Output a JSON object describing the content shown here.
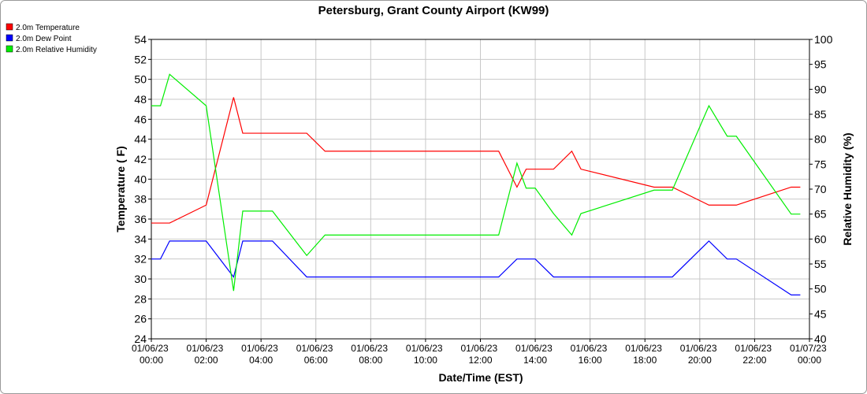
{
  "chart_data": {
    "type": "line",
    "title": "Petersburg, Grant County Airport (KW99)",
    "x_label": "Date/Time (EST)",
    "y_label": "Temperature ( F)",
    "y2_label": "Relative Humidity (%)",
    "grid": true,
    "legend": "top-left",
    "x": [
      "01/06/23 00:00",
      "01/06/23 00:20",
      "01/06/23 00:40",
      "01/06/23 02:00",
      "01/06/23 03:00",
      "01/06/23 03:20",
      "01/06/23 04:25",
      "01/06/23 05:40",
      "01/06/23 06:20",
      "01/06/23 12:40",
      "01/06/23 13:20",
      "01/06/23 13:40",
      "01/06/23 14:00",
      "01/06/23 14:40",
      "01/06/23 15:20",
      "01/06/23 15:40",
      "01/06/23 18:20",
      "01/06/23 19:00",
      "01/06/23 20:20",
      "01/06/23 21:00",
      "01/06/23 21:20",
      "01/06/23 23:20",
      "01/06/23 23:40"
    ],
    "series": [
      {
        "name": "2.0m Temperature",
        "color": "#ff0000",
        "values": [
          35.6,
          35.6,
          35.6,
          37.4,
          48.2,
          44.6,
          44.6,
          44.6,
          42.8,
          42.8,
          39.2,
          41,
          41,
          41,
          42.8,
          41,
          39.2,
          39.2,
          37.4,
          37.4,
          37.4,
          39.2,
          39.2
        ]
      },
      {
        "name": "2.0m Dew Point",
        "color": "#0000ff",
        "values": [
          32,
          32,
          33.8,
          33.8,
          30.2,
          33.8,
          33.8,
          30.2,
          30.2,
          30.2,
          32,
          32,
          32,
          30.2,
          30.2,
          30.2,
          30.2,
          30.2,
          33.8,
          32,
          32,
          28.4,
          28.4
        ]
      },
      {
        "name": "2.0m Relative Humidity",
        "color": "#00ee00",
        "axis": "y2",
        "values": [
          86.7,
          86.7,
          93,
          86.7,
          49.6,
          65.6,
          65.6,
          56.7,
          60.8,
          60.8,
          75.2,
          70.2,
          70.2,
          65.1,
          60.8,
          65.1,
          69.8,
          69.8,
          86.7,
          80.6,
          80.6,
          65,
          65
        ]
      }
    ],
    "xlim": [
      "01/06/23 00:00",
      "01/07/23 00:00"
    ],
    "xticks": [
      "01/06/23 00:00",
      "01/06/23 02:00",
      "01/06/23 04:00",
      "01/06/23 06:00",
      "01/06/23 08:00",
      "01/06/23 10:00",
      "01/06/23 12:00",
      "01/06/23 14:00",
      "01/06/23 16:00",
      "01/06/23 18:00",
      "01/06/23 20:00",
      "01/06/23 22:00",
      "01/07/23 00:00"
    ],
    "ylim": [
      24,
      54
    ],
    "yticks": [
      24,
      26,
      28,
      30,
      32,
      34,
      36,
      38,
      40,
      42,
      44,
      46,
      48,
      50,
      52,
      54
    ],
    "y2lim": [
      40,
      100
    ],
    "y2ticks": [
      40,
      45,
      50,
      55,
      60,
      65,
      70,
      75,
      80,
      85,
      90,
      95,
      100
    ]
  }
}
